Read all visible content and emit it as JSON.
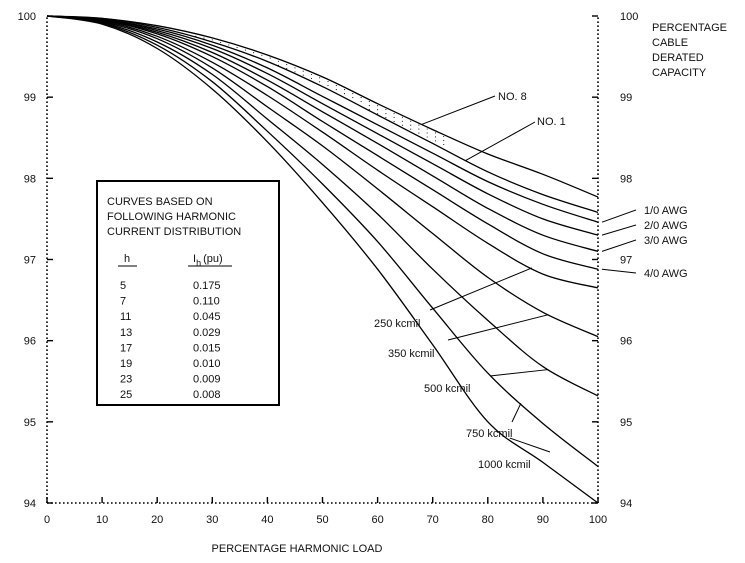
{
  "chart_data": {
    "type": "line",
    "xlabel": "PERCENTAGE HARMONIC LOAD",
    "ylabel_right": [
      "PERCENTAGE",
      "CABLE",
      "DERATED",
      "CAPACITY"
    ],
    "xlim": [
      0,
      100
    ],
    "ylim": [
      94,
      100
    ],
    "xticks": [
      "0",
      "10",
      "20",
      "30",
      "40",
      "50",
      "60",
      "70",
      "80",
      "90",
      "100"
    ],
    "yticks": [
      "94",
      "95",
      "96",
      "97",
      "98",
      "99",
      "100"
    ],
    "grid": false,
    "series": [
      {
        "name": "NO. 8",
        "x": [
          0,
          10,
          20,
          30,
          40,
          50,
          60,
          70,
          80,
          90,
          100
        ],
        "y": [
          100,
          99.97,
          99.88,
          99.73,
          99.52,
          99.25,
          98.92,
          98.6,
          98.3,
          98.05,
          97.77
        ]
      },
      {
        "name": "NO. 1",
        "x": [
          0,
          10,
          20,
          30,
          40,
          50,
          60,
          70,
          80,
          90,
          100
        ],
        "y": [
          100,
          99.97,
          99.86,
          99.68,
          99.44,
          99.13,
          98.78,
          98.43,
          98.08,
          97.8,
          97.58
        ]
      },
      {
        "name": "1/0 AWG",
        "x": [
          0,
          10,
          20,
          30,
          40,
          50,
          60,
          70,
          80,
          90,
          100
        ],
        "y": [
          100,
          99.96,
          99.84,
          99.64,
          99.36,
          99.01,
          98.66,
          98.31,
          97.96,
          97.68,
          97.46
        ]
      },
      {
        "name": "2/0 AWG",
        "x": [
          0,
          10,
          20,
          30,
          40,
          50,
          60,
          70,
          80,
          90,
          100
        ],
        "y": [
          100,
          99.96,
          99.82,
          99.6,
          99.29,
          98.92,
          98.55,
          98.18,
          97.81,
          97.5,
          97.3
        ]
      },
      {
        "name": "3/0 AWG",
        "x": [
          0,
          10,
          20,
          30,
          40,
          50,
          60,
          70,
          80,
          90,
          100
        ],
        "y": [
          100,
          99.95,
          99.8,
          99.55,
          99.21,
          98.82,
          98.43,
          98.03,
          97.63,
          97.3,
          97.1
        ]
      },
      {
        "name": "4/0 AWG",
        "x": [
          0,
          10,
          20,
          30,
          40,
          50,
          60,
          70,
          80,
          90,
          100
        ],
        "y": [
          100,
          99.95,
          99.78,
          99.5,
          99.13,
          98.7,
          98.28,
          97.86,
          97.44,
          97.07,
          96.88
        ]
      },
      {
        "name": "250 kcmil",
        "x": [
          0,
          10,
          20,
          30,
          40,
          50,
          60,
          70,
          80,
          90,
          100
        ],
        "y": [
          100,
          99.94,
          99.75,
          99.43,
          99.02,
          98.57,
          98.1,
          97.65,
          97.2,
          96.82,
          96.65
        ]
      },
      {
        "name": "350 kcmil",
        "x": [
          0,
          10,
          20,
          30,
          40,
          50,
          60,
          70,
          80,
          90,
          100
        ],
        "y": [
          100,
          99.93,
          99.72,
          99.36,
          98.88,
          98.4,
          97.87,
          97.32,
          96.78,
          96.35,
          96.05
        ]
      },
      {
        "name": "500 kcmil",
        "x": [
          0,
          10,
          20,
          30,
          40,
          50,
          60,
          70,
          80,
          90,
          100
        ],
        "y": [
          100,
          99.92,
          99.68,
          99.28,
          98.73,
          98.17,
          97.56,
          96.88,
          96.25,
          95.68,
          95.32
        ]
      },
      {
        "name": "750 kcmil",
        "x": [
          0,
          10,
          20,
          30,
          40,
          50,
          60,
          70,
          80,
          90,
          100
        ],
        "y": [
          100,
          99.91,
          99.64,
          99.19,
          98.58,
          97.93,
          97.22,
          96.4,
          95.6,
          94.98,
          94.45
        ]
      },
      {
        "name": "1000 kcmil",
        "x": [
          0,
          10,
          20,
          30,
          40,
          50,
          60,
          70,
          80,
          90,
          100
        ],
        "y": [
          100,
          99.9,
          99.6,
          99.1,
          98.45,
          97.7,
          96.88,
          95.95,
          95.0,
          94.5,
          94.0
        ]
      }
    ],
    "curve_labels_right": [
      "1/0 AWG",
      "2/0 AWG",
      "3/0 AWG",
      "4/0 AWG"
    ],
    "curve_labels_inner": [
      "NO. 8",
      "NO. 1",
      "250 kcmil",
      "350 kcmil",
      "500 kcmil",
      "750 kcmil",
      "1000 kcmil"
    ],
    "annotation": {
      "lines": [
        "CURVES BASED ON",
        "FOLLOWING HARMONIC",
        "CURRENT DISTRIBUTION"
      ],
      "col_h": "h",
      "col_ih": "I",
      "col_ih_sub": "h",
      "col_ih_unit": "(pu)",
      "rows": [
        {
          "h": "5",
          "ih": "0.175"
        },
        {
          "h": "7",
          "ih": "0.110"
        },
        {
          "h": "11",
          "ih": "0.045"
        },
        {
          "h": "13",
          "ih": "0.029"
        },
        {
          "h": "17",
          "ih": "0.015"
        },
        {
          "h": "19",
          "ih": "0.010"
        },
        {
          "h": "23",
          "ih": "0.009"
        },
        {
          "h": "25",
          "ih": "0.008"
        }
      ]
    }
  }
}
